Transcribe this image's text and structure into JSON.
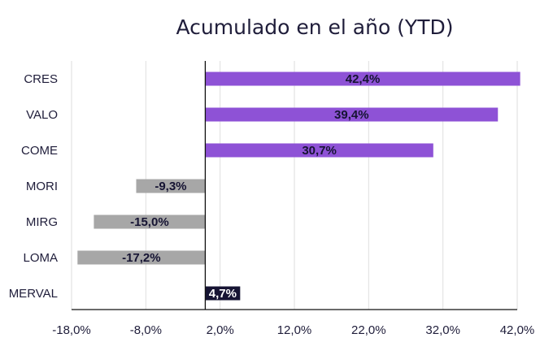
{
  "chart_data": {
    "type": "bar",
    "orientation": "horizontal",
    "title": "Acumulado en el año (YTD)",
    "categories": [
      "CRES",
      "VALO",
      "COME",
      "MORI",
      "MIRG",
      "LOMA",
      "MERVAL"
    ],
    "values": [
      42.4,
      39.4,
      30.7,
      -9.3,
      -15.0,
      -17.2,
      4.7
    ],
    "value_labels": [
      "42,4%",
      "39,4%",
      "30,7%",
      "-9,3%",
      "-15,0%",
      "-17,2%",
      "4,7%"
    ],
    "xlim": [
      -18,
      42
    ],
    "x_ticks": [
      -18,
      -8,
      2,
      12,
      22,
      32,
      42
    ],
    "x_tick_labels": [
      "-18,0%",
      "-8,0%",
      "2,0%",
      "12,0%",
      "22,0%",
      "32,0%",
      "42,0%"
    ],
    "baseline": 0,
    "grid": "vertical",
    "legend": "none",
    "colors": {
      "positive": "#8e52d6",
      "negative": "#a7a7a7",
      "index": "#161433",
      "label_dark": "#161433",
      "label_light": "#ffffff",
      "grid": "#dedede",
      "axis": "#111111"
    },
    "bar_colors": [
      "positive",
      "positive",
      "positive",
      "negative",
      "negative",
      "negative",
      "index"
    ]
  }
}
